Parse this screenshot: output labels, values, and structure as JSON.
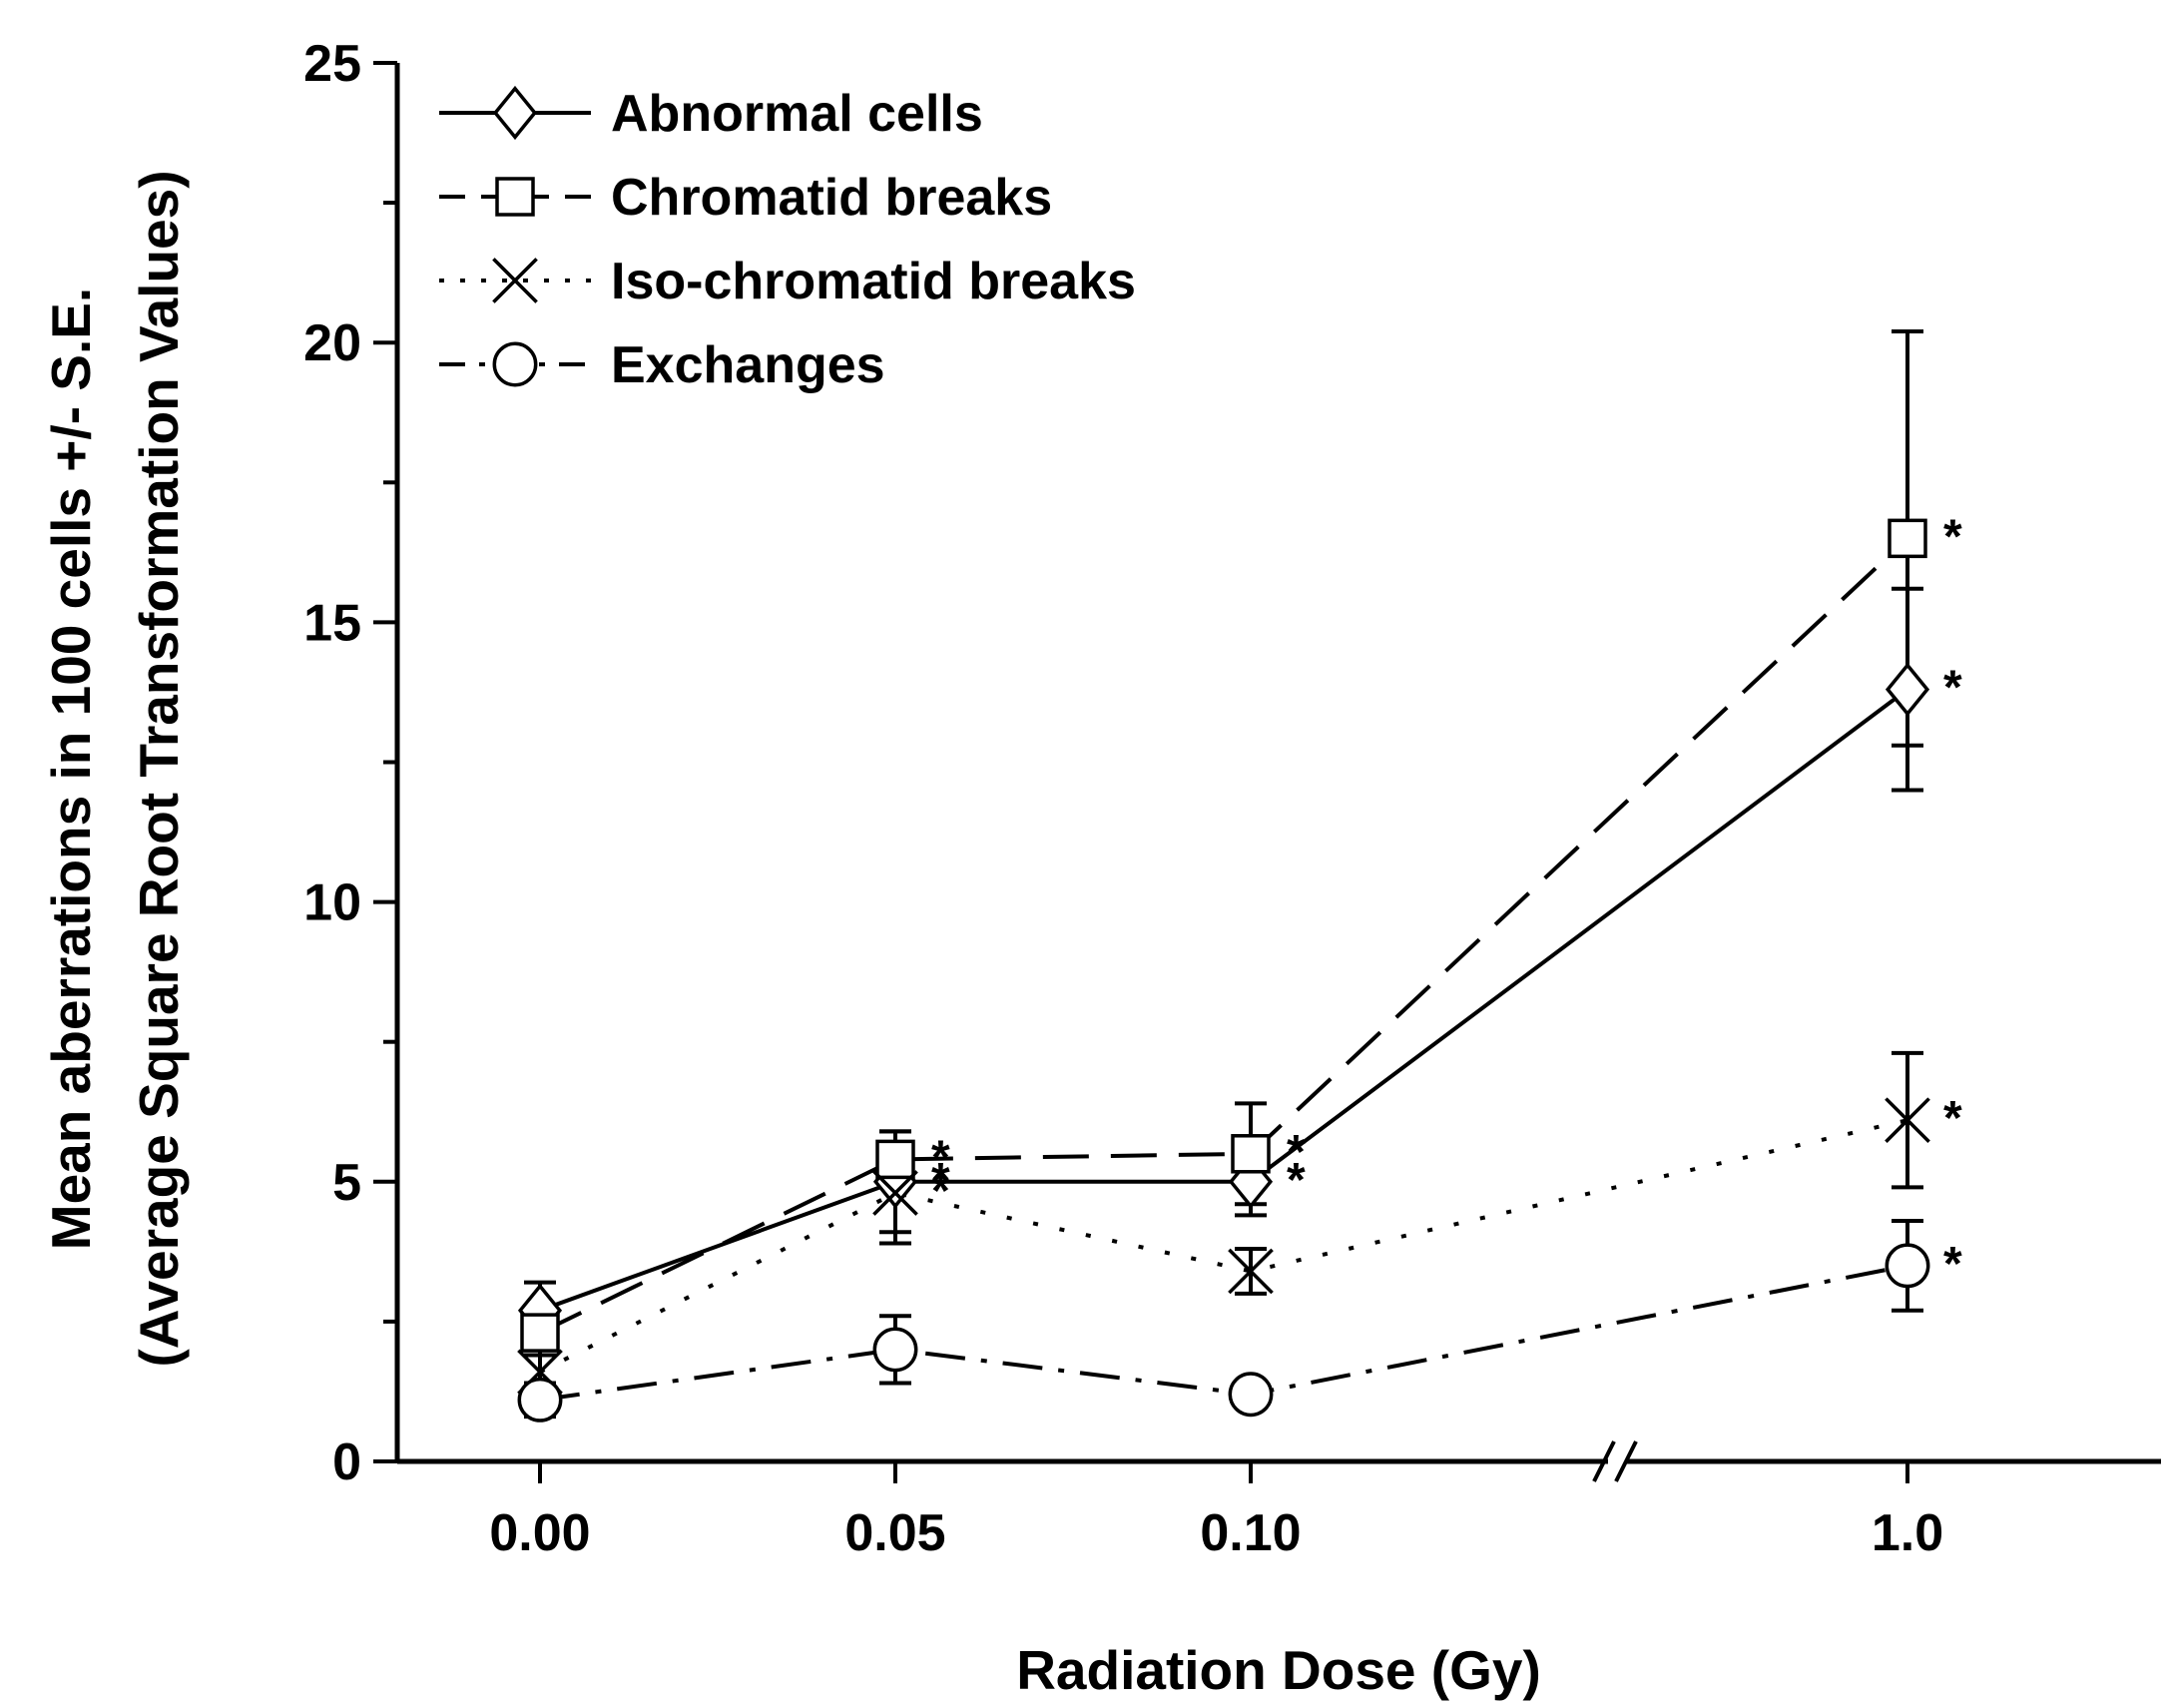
{
  "chart_data": {
    "type": "line",
    "title": "",
    "xlabel": "Radiation Dose (Gy)",
    "ylabel": [
      "Mean aberrations in 100 cells +/- S.E.",
      "(Average Square Root Transformation Values)"
    ],
    "categories": [
      "0.00",
      "0.05",
      "0.10",
      "1.0"
    ],
    "x_axis_break": "between 0.10 and 1.0",
    "ylim": [
      0,
      25
    ],
    "y_ticks": [
      "0",
      "5",
      "10",
      "15",
      "20",
      "25"
    ],
    "y_major_step": 5,
    "y_minor_step": 2.5,
    "grid": false,
    "legend_position": "top-left",
    "significance_mark": "*",
    "series": [
      {
        "name": "Abnormal cells",
        "marker": "diamond",
        "line_style": "solid",
        "values": [
          2.7,
          5.0,
          5.0,
          13.8
        ],
        "errors": [
          0.5,
          0.9,
          0.6,
          1.8
        ],
        "significant": [
          false,
          true,
          true,
          true
        ]
      },
      {
        "name": "Chromatid breaks",
        "marker": "square",
        "line_style": "dashed",
        "values": [
          2.3,
          5.4,
          5.5,
          16.5
        ],
        "errors": [
          0.4,
          0.5,
          0.9,
          3.7
        ],
        "significant": [
          false,
          true,
          true,
          true
        ]
      },
      {
        "name": "Iso-chromatid breaks",
        "marker": "x",
        "line_style": "dotted",
        "values": [
          1.6,
          4.8,
          3.4,
          6.1
        ],
        "errors": [
          0.3,
          0.9,
          0.4,
          1.2
        ],
        "significant": [
          false,
          true,
          false,
          true
        ]
      },
      {
        "name": "Exchanges",
        "marker": "circle",
        "line_style": "dash-dot",
        "values": [
          1.1,
          2.0,
          1.2,
          3.5
        ],
        "errors": [
          0.3,
          0.6,
          0.2,
          0.8
        ],
        "significant": [
          false,
          false,
          false,
          true
        ]
      }
    ]
  }
}
